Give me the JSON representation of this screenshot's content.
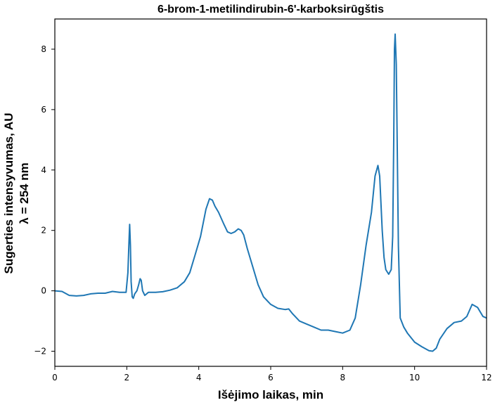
{
  "chart_data": {
    "type": "line",
    "title": "6-brom-1-metilindirubin-6'-karboksirūgštis",
    "xlabel": "Išėjimo laikas, min",
    "ylabel": "Sugerties intensyvumas, AU",
    "ylabel_line2": "λ = 254 nm",
    "xlim": [
      0,
      12
    ],
    "ylim": [
      -2.5,
      9.0
    ],
    "xticks": [
      0,
      2,
      4,
      6,
      8,
      10,
      12
    ],
    "yticks": [
      -2,
      0,
      2,
      4,
      6,
      8
    ],
    "xtick_labels": [
      "0",
      "2",
      "4",
      "6",
      "8",
      "10",
      "12"
    ],
    "ytick_labels": [
      "−2",
      "0",
      "2",
      "4",
      "6",
      "8"
    ],
    "grid": false,
    "legend": "none",
    "series": [
      {
        "color": "#1f77b4",
        "x": [
          0,
          0.2,
          0.4,
          0.6,
          0.8,
          1.0,
          1.2,
          1.4,
          1.6,
          1.8,
          1.9,
          1.98,
          2.03,
          2.06,
          2.08,
          2.1,
          2.12,
          2.15,
          2.18,
          2.22,
          2.28,
          2.33,
          2.37,
          2.4,
          2.44,
          2.5,
          2.6,
          2.8,
          3.0,
          3.2,
          3.4,
          3.6,
          3.75,
          3.9,
          4.05,
          4.2,
          4.3,
          4.38,
          4.45,
          4.55,
          4.7,
          4.8,
          4.9,
          5.0,
          5.1,
          5.18,
          5.25,
          5.35,
          5.5,
          5.65,
          5.8,
          6.0,
          6.2,
          6.4,
          6.5,
          6.6,
          6.8,
          7.0,
          7.2,
          7.4,
          7.6,
          7.8,
          8.0,
          8.2,
          8.35,
          8.5,
          8.65,
          8.8,
          8.9,
          8.98,
          9.03,
          9.06,
          9.1,
          9.15,
          9.2,
          9.28,
          9.35,
          9.39,
          9.42,
          9.44,
          9.46,
          9.49,
          9.52,
          9.55,
          9.6,
          9.7,
          9.8,
          10.0,
          10.2,
          10.4,
          10.5,
          10.6,
          10.7,
          10.9,
          11.1,
          11.3,
          11.45,
          11.6,
          11.75,
          11.9,
          12.0
        ],
        "y": [
          0.0,
          -0.02,
          -0.15,
          -0.17,
          -0.15,
          -0.1,
          -0.08,
          -0.08,
          -0.02,
          -0.05,
          -0.05,
          -0.05,
          0.6,
          1.6,
          2.2,
          1.5,
          0.3,
          -0.2,
          -0.25,
          -0.1,
          0.0,
          0.2,
          0.4,
          0.35,
          0.0,
          -0.15,
          -0.05,
          -0.05,
          -0.03,
          0.02,
          0.1,
          0.3,
          0.6,
          1.2,
          1.8,
          2.7,
          3.05,
          3.0,
          2.8,
          2.6,
          2.2,
          1.95,
          1.9,
          1.95,
          2.05,
          2.0,
          1.85,
          1.4,
          0.8,
          0.2,
          -0.2,
          -0.45,
          -0.58,
          -0.62,
          -0.6,
          -0.75,
          -1.0,
          -1.1,
          -1.2,
          -1.3,
          -1.3,
          -1.35,
          -1.4,
          -1.3,
          -0.9,
          0.2,
          1.5,
          2.6,
          3.8,
          4.15,
          3.8,
          3.0,
          2.0,
          1.1,
          0.7,
          0.55,
          0.7,
          1.8,
          5.0,
          8.0,
          8.5,
          7.5,
          4.5,
          1.5,
          -0.9,
          -1.2,
          -1.4,
          -1.7,
          -1.85,
          -1.98,
          -2.0,
          -1.9,
          -1.6,
          -1.25,
          -1.05,
          -1.0,
          -0.85,
          -0.45,
          -0.55,
          -0.85,
          -0.9
        ]
      }
    ]
  }
}
